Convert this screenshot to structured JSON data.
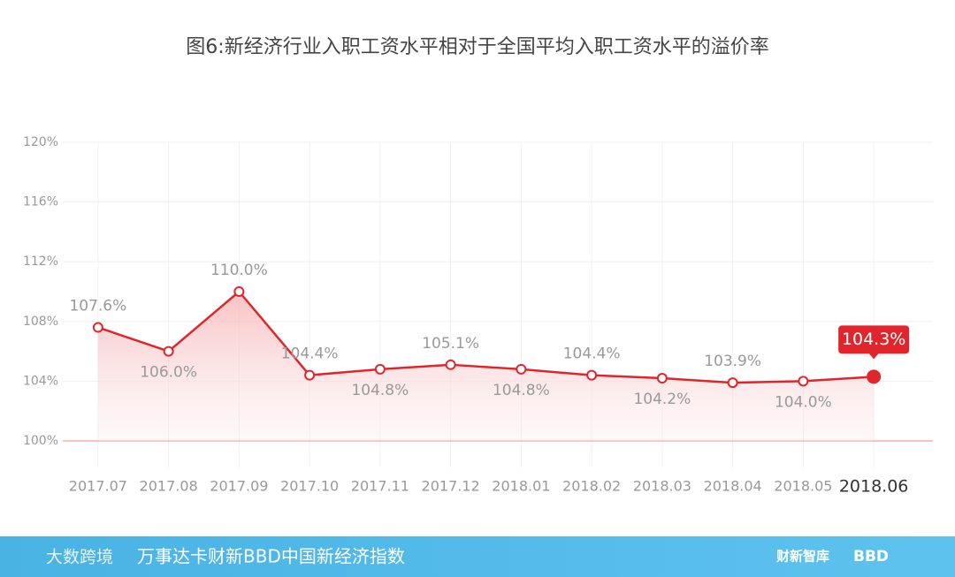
{
  "chart_data": {
    "type": "line",
    "title": "图6:新经济行业入职工资水平相对于全国平均入职工资水平的溢价率",
    "categories": [
      "2017.07",
      "2017.08",
      "2017.09",
      "2017.10",
      "2017.11",
      "2017.12",
      "2018.01",
      "2018.02",
      "2018.03",
      "2018.04",
      "2018.05",
      "2018.06"
    ],
    "values": [
      107.6,
      106.0,
      110.0,
      104.4,
      104.8,
      105.1,
      104.8,
      104.4,
      104.2,
      103.9,
      104.0,
      104.3
    ],
    "value_labels": [
      "107.6%",
      "106.0%",
      "110.0%",
      "104.4%",
      "104.8%",
      "105.1%",
      "104.8%",
      "104.4%",
      "104.2%",
      "103.9%",
      "104.0%",
      "104.3%"
    ],
    "color": "#e0262c",
    "ylim": [
      100,
      120
    ],
    "yticks": [
      {
        "value": 100,
        "label": "100%"
      },
      {
        "value": 104,
        "label": "104%"
      },
      {
        "value": 108,
        "label": "108%"
      },
      {
        "value": 112,
        "label": "112%"
      },
      {
        "value": 116,
        "label": "116%"
      },
      {
        "value": 120,
        "label": "120%"
      }
    ],
    "grid": true
  },
  "footer": {
    "text": "万事达卡财新BBD中国新经济指数",
    "logos": [
      "大数跨境",
      "财新智库",
      "BBD"
    ]
  }
}
